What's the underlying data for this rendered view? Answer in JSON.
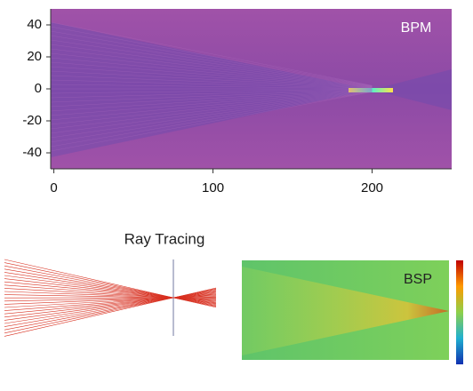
{
  "chart_data": [
    {
      "type": "heatmap",
      "label": "BPM",
      "xlim": [
        -2,
        250
      ],
      "ylim": [
        -50,
        50
      ],
      "xticks": [
        0,
        100,
        200
      ],
      "yticks": [
        40,
        20,
        0,
        -20,
        -40
      ]
    },
    {
      "type": "rays",
      "title": "Ray Tracing"
    },
    {
      "type": "heatmap",
      "label": "BSP"
    }
  ]
}
